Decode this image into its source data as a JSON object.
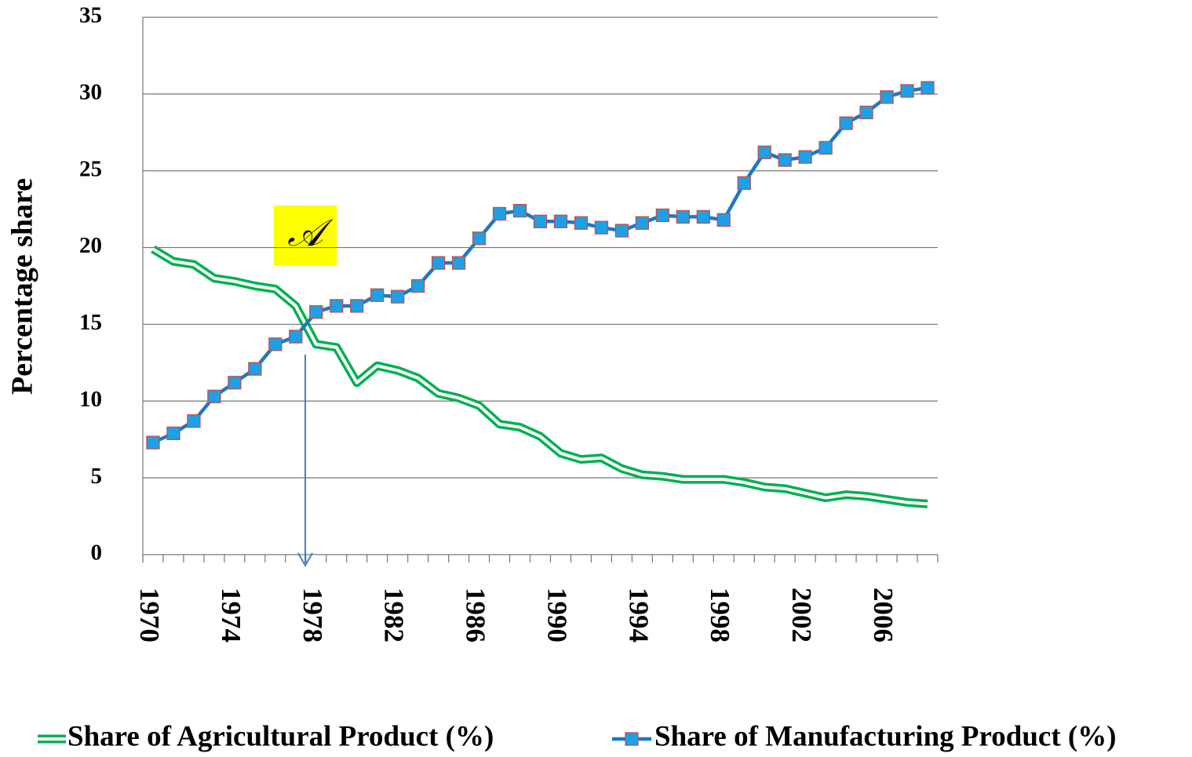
{
  "chart_data": {
    "type": "line",
    "y_label": "Percentage share",
    "categories": [
      "1970",
      null,
      null,
      null,
      "1974",
      null,
      null,
      null,
      "1978",
      null,
      null,
      null,
      "1982",
      null,
      null,
      null,
      "1986",
      null,
      null,
      null,
      "1990",
      null,
      null,
      null,
      "1994",
      null,
      null,
      null,
      "1998",
      null,
      null,
      null,
      "2002",
      null,
      null,
      null,
      "2006",
      null,
      null
    ],
    "series": [
      {
        "name": "Share of Agricultural Product (%)",
        "color": "#00b050",
        "style": "double",
        "values": [
          19.9,
          19.1,
          18.9,
          18.0,
          17.8,
          17.5,
          17.3,
          16.2,
          13.7,
          13.5,
          11.2,
          12.3,
          12.0,
          11.5,
          10.5,
          10.2,
          9.7,
          8.5,
          8.3,
          7.7,
          6.6,
          6.2,
          6.3,
          5.6,
          5.2,
          5.1,
          4.9,
          4.9,
          4.9,
          4.7,
          4.4,
          4.3,
          4.0,
          3.7,
          3.9,
          3.8,
          3.6,
          3.4,
          3.3
        ]
      },
      {
        "name": "Share of Manufacturing Product (%)",
        "color": "#1f77c4",
        "marker_color": "#1ea0e6",
        "style": "marker",
        "values": [
          7.3,
          7.9,
          8.7,
          10.3,
          11.2,
          12.1,
          13.7,
          14.2,
          15.8,
          16.2,
          16.2,
          16.9,
          16.8,
          17.5,
          19.0,
          19.0,
          20.6,
          22.2,
          22.4,
          21.7,
          21.7,
          21.6,
          21.3,
          21.1,
          21.6,
          22.1,
          22.0,
          22.0,
          21.8,
          24.2,
          26.2,
          25.7,
          25.9,
          26.5,
          28.1,
          28.8,
          29.8,
          30.2,
          30.4
        ]
      }
    ],
    "ylim": [
      0,
      35
    ],
    "yticks": [
      0,
      5,
      10,
      15,
      20,
      25,
      30,
      35
    ],
    "grid": true,
    "legend": "bottom",
    "annotations": [
      "𝒜"
    ]
  }
}
